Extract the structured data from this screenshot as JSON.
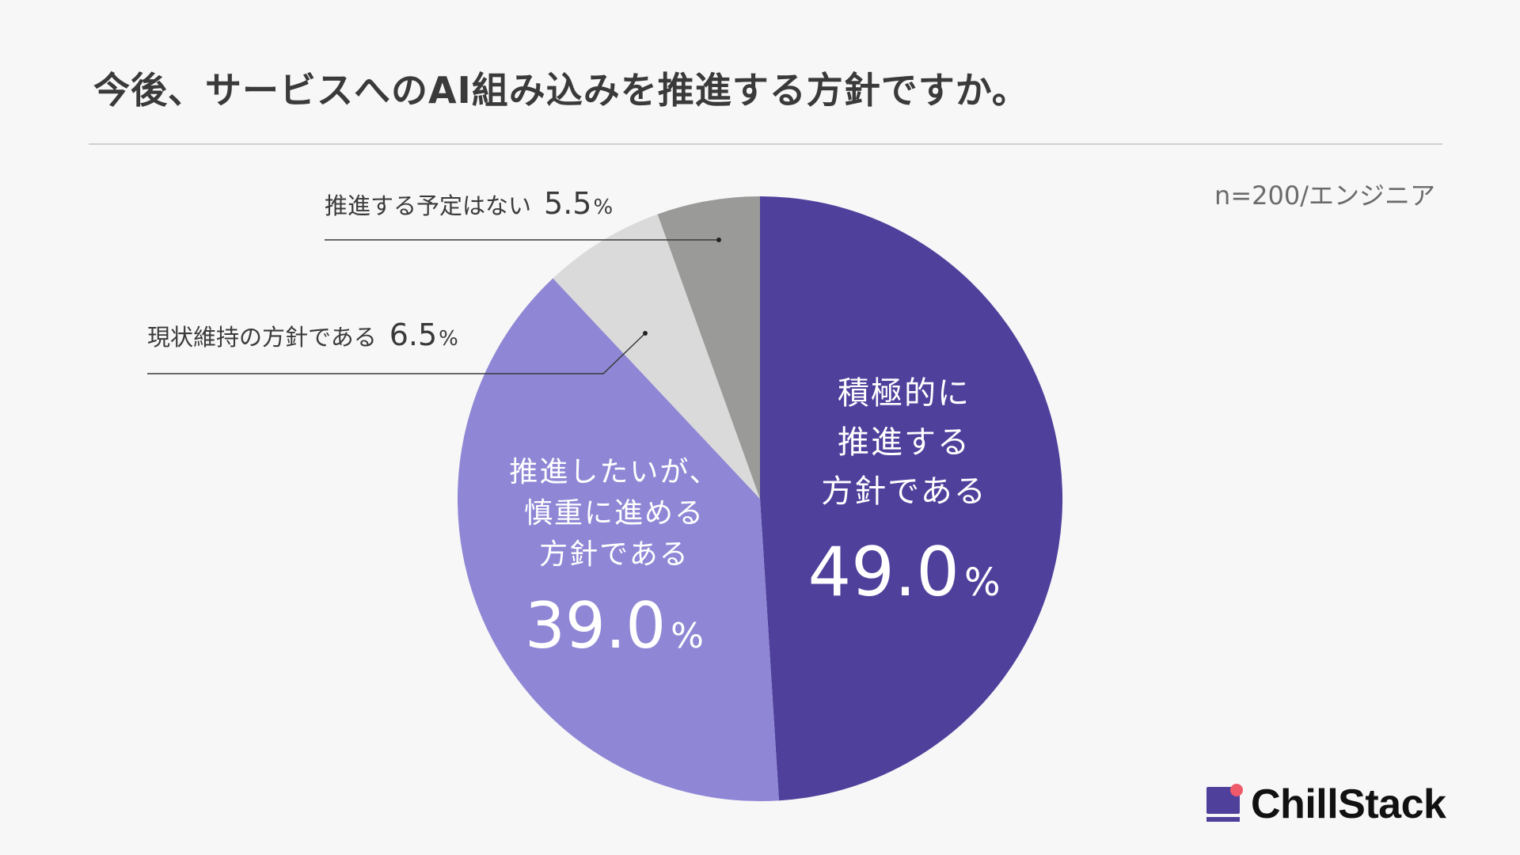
{
  "header": {
    "title": "今後、サービスへのAI組み込みを推進する方針ですか。",
    "sample_note": "n=200/エンジニア"
  },
  "brand": {
    "name": "ChillStack",
    "primary_color": "#4f409c",
    "accent_color": "#ef5a6a"
  },
  "chart_data": {
    "type": "pie",
    "title": "今後、サービスへのAI組み込みを推進する方針ですか。",
    "unit": "%",
    "start": "12 o'clock, clockwise",
    "slices": [
      {
        "label_lines": [
          "積極的に",
          "推進する",
          "方針である"
        ],
        "value": 49.0,
        "display_value": "49.0",
        "color": "#4f409c",
        "label_position": "inside"
      },
      {
        "label_lines": [
          "推進したいが、",
          "慎重に進める",
          "方針である"
        ],
        "value": 39.0,
        "display_value": "39.0",
        "color": "#8f87d5",
        "label_position": "inside"
      },
      {
        "label_lines": [
          "現状維持の方針である"
        ],
        "value": 6.5,
        "display_value": "6.5",
        "color": "#dadada",
        "label_position": "outside-left"
      },
      {
        "label_lines": [
          "推進する予定はない"
        ],
        "value": 5.5,
        "display_value": "5.5",
        "color": "#9a9b98",
        "label_position": "outside-left"
      }
    ]
  }
}
